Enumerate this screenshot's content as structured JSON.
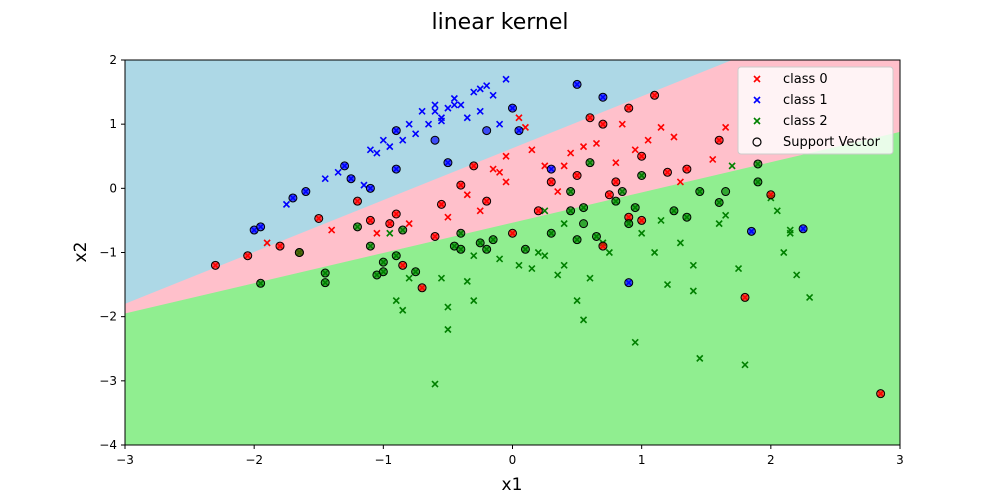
{
  "chart_data": {
    "type": "scatter",
    "title": "linear kernel",
    "xlabel": "x1",
    "ylabel": "x2",
    "xlim": [
      -3,
      3
    ],
    "ylim": [
      -4,
      2
    ],
    "xticks": [
      -3,
      -2,
      -1,
      0,
      1,
      2,
      3
    ],
    "yticks": [
      -4,
      -3,
      -2,
      -1,
      0,
      1,
      2
    ],
    "grid": false,
    "legend_placement": "top-right",
    "background_regions": [
      {
        "name": "class 1 region",
        "color": "#add8e6",
        "boundary": [
          [
            -3,
            -1.8
          ],
          [
            1.7,
            2
          ],
          [
            3,
            2
          ]
        ]
      },
      {
        "name": "class 0 region",
        "color": "#ffc0cb",
        "boundary": [
          [
            -3,
            -1.95
          ],
          [
            3,
            0.88
          ]
        ]
      },
      {
        "name": "class 2 region",
        "color": "#90ee90"
      }
    ],
    "series": [
      {
        "name": "class 0",
        "color": "#ff0000",
        "marker": "x",
        "points": [
          [
            -2.3,
            -1.2
          ],
          [
            -2.05,
            -1.05
          ],
          [
            -1.9,
            -0.85
          ],
          [
            -1.8,
            -0.9
          ],
          [
            -1.65,
            -1.0
          ],
          [
            -1.5,
            -0.47
          ],
          [
            -1.4,
            -0.65
          ],
          [
            -1.2,
            -0.2
          ],
          [
            -1.1,
            -0.5
          ],
          [
            -1.05,
            -0.7
          ],
          [
            -0.95,
            -0.55
          ],
          [
            -0.9,
            -0.4
          ],
          [
            -0.85,
            -1.2
          ],
          [
            -0.8,
            -0.55
          ],
          [
            -0.7,
            -1.55
          ],
          [
            -0.6,
            -0.75
          ],
          [
            -0.55,
            -0.25
          ],
          [
            -0.5,
            -0.45
          ],
          [
            -0.4,
            0.05
          ],
          [
            -0.35,
            -0.1
          ],
          [
            -0.3,
            0.35
          ],
          [
            -0.25,
            -0.35
          ],
          [
            -0.2,
            -0.2
          ],
          [
            -0.15,
            0.3
          ],
          [
            -0.1,
            0.25
          ],
          [
            -0.05,
            0.1
          ],
          [
            0.0,
            -0.7
          ],
          [
            0.05,
            1.1
          ],
          [
            0.1,
            0.95
          ],
          [
            0.2,
            -0.35
          ],
          [
            0.25,
            0.35
          ],
          [
            0.3,
            0.1
          ],
          [
            0.4,
            0.35
          ],
          [
            0.45,
            0.55
          ],
          [
            0.5,
            0.2
          ],
          [
            0.55,
            0.65
          ],
          [
            0.6,
            1.1
          ],
          [
            0.65,
            0.7
          ],
          [
            0.7,
            1.0
          ],
          [
            0.75,
            -0.1
          ],
          [
            0.8,
            0.4
          ],
          [
            0.85,
            1.0
          ],
          [
            0.9,
            1.25
          ],
          [
            0.95,
            0.6
          ],
          [
            1.0,
            0.5
          ],
          [
            1.05,
            0.75
          ],
          [
            1.1,
            1.45
          ],
          [
            1.15,
            0.95
          ],
          [
            1.2,
            0.25
          ],
          [
            1.25,
            0.8
          ],
          [
            1.3,
            0.1
          ],
          [
            1.35,
            0.3
          ],
          [
            1.6,
            0.75
          ],
          [
            1.65,
            0.95
          ],
          [
            1.8,
            -1.7
          ],
          [
            2.0,
            -0.1
          ],
          [
            2.85,
            -3.2
          ],
          [
            0.9,
            -0.45
          ],
          [
            0.7,
            -0.9
          ],
          [
            0.15,
            0.6
          ],
          [
            -0.05,
            0.5
          ],
          [
            0.35,
            -0.05
          ],
          [
            1.0,
            -0.5
          ],
          [
            0.8,
            0.1
          ],
          [
            1.55,
            0.45
          ]
        ],
        "support_vectors": [
          [
            -2.3,
            -1.2
          ],
          [
            -2.05,
            -1.05
          ],
          [
            -1.8,
            -0.9
          ],
          [
            -1.65,
            -1.0
          ],
          [
            -1.5,
            -0.47
          ],
          [
            -1.2,
            -0.2
          ],
          [
            -1.1,
            -0.5
          ],
          [
            -0.95,
            -0.55
          ],
          [
            -0.9,
            -0.4
          ],
          [
            -0.85,
            -1.2
          ],
          [
            -0.7,
            -1.55
          ],
          [
            -0.6,
            -0.75
          ],
          [
            -0.55,
            -0.25
          ],
          [
            -0.4,
            0.05
          ],
          [
            -0.3,
            0.35
          ],
          [
            -0.2,
            -0.2
          ],
          [
            0.0,
            -0.7
          ],
          [
            0.2,
            -0.35
          ],
          [
            0.3,
            0.1
          ],
          [
            0.5,
            0.2
          ],
          [
            0.6,
            1.1
          ],
          [
            0.7,
            1.0
          ],
          [
            0.75,
            -0.1
          ],
          [
            0.9,
            1.25
          ],
          [
            1.0,
            0.5
          ],
          [
            1.1,
            1.45
          ],
          [
            1.2,
            0.25
          ],
          [
            1.35,
            0.3
          ],
          [
            1.6,
            0.75
          ],
          [
            1.8,
            -1.7
          ],
          [
            2.0,
            -0.1
          ],
          [
            2.85,
            -3.2
          ],
          [
            0.9,
            -0.45
          ],
          [
            0.7,
            -0.9
          ],
          [
            1.0,
            -0.5
          ],
          [
            0.8,
            0.1
          ]
        ]
      },
      {
        "name": "class 1",
        "color": "#0000ff",
        "marker": "x",
        "points": [
          [
            -2.0,
            -0.65
          ],
          [
            -1.95,
            -0.6
          ],
          [
            -1.75,
            -0.25
          ],
          [
            -1.7,
            -0.15
          ],
          [
            -1.6,
            -0.05
          ],
          [
            -1.45,
            0.15
          ],
          [
            -1.35,
            0.25
          ],
          [
            -1.3,
            0.35
          ],
          [
            -1.25,
            0.15
          ],
          [
            -1.15,
            0.05
          ],
          [
            -1.1,
            0.6
          ],
          [
            -1.05,
            0.55
          ],
          [
            -1.0,
            0.75
          ],
          [
            -0.95,
            0.65
          ],
          [
            -0.9,
            0.9
          ],
          [
            -0.85,
            0.75
          ],
          [
            -0.8,
            1.0
          ],
          [
            -0.75,
            0.85
          ],
          [
            -0.7,
            1.2
          ],
          [
            -0.65,
            1.0
          ],
          [
            -0.6,
            1.3
          ],
          [
            -0.55,
            1.1
          ],
          [
            -0.5,
            1.25
          ],
          [
            -0.45,
            1.4
          ],
          [
            -0.4,
            1.3
          ],
          [
            -0.35,
            1.1
          ],
          [
            -0.3,
            1.5
          ],
          [
            -0.25,
            1.2
          ],
          [
            -0.2,
            1.6
          ],
          [
            -0.15,
            1.45
          ],
          [
            -0.1,
            1.0
          ],
          [
            -0.05,
            1.7
          ],
          [
            0.0,
            1.25
          ],
          [
            0.05,
            0.9
          ],
          [
            0.5,
            1.62
          ],
          [
            0.7,
            1.42
          ],
          [
            0.9,
            -1.47
          ],
          [
            1.85,
            -0.67
          ],
          [
            2.25,
            -0.63
          ],
          [
            -0.9,
            0.3
          ],
          [
            -1.1,
            0.0
          ],
          [
            -0.5,
            0.4
          ],
          [
            0.3,
            0.3
          ],
          [
            -0.6,
            1.2
          ],
          [
            -0.45,
            1.3
          ],
          [
            -0.55,
            1.05
          ],
          [
            -0.25,
            1.55
          ]
        ],
        "support_vectors": [
          [
            -2.0,
            -0.65
          ],
          [
            -1.95,
            -0.6
          ],
          [
            -1.7,
            -0.15
          ],
          [
            -1.6,
            -0.05
          ],
          [
            -1.3,
            0.35
          ],
          [
            -1.25,
            0.15
          ],
          [
            -1.1,
            0.0
          ],
          [
            -0.9,
            0.3
          ],
          [
            -0.9,
            0.9
          ],
          [
            -0.6,
            0.75
          ],
          [
            -0.5,
            0.4
          ],
          [
            -0.2,
            0.9
          ],
          [
            0.0,
            1.25
          ],
          [
            0.05,
            0.9
          ],
          [
            0.5,
            1.62
          ],
          [
            0.7,
            1.42
          ],
          [
            0.9,
            -1.47
          ],
          [
            1.85,
            -0.67
          ],
          [
            2.25,
            -0.63
          ],
          [
            0.3,
            0.3
          ]
        ]
      },
      {
        "name": "class 2",
        "color": "#008000",
        "marker": "x",
        "points": [
          [
            -1.95,
            -1.48
          ],
          [
            -1.65,
            -1.0
          ],
          [
            -1.45,
            -1.32
          ],
          [
            -1.45,
            -1.47
          ],
          [
            -1.2,
            -0.6
          ],
          [
            -1.1,
            -0.9
          ],
          [
            -1.05,
            -1.35
          ],
          [
            -1.0,
            -1.3
          ],
          [
            -0.95,
            -0.7
          ],
          [
            -0.9,
            -1.05
          ],
          [
            -0.85,
            -0.65
          ],
          [
            -0.8,
            -1.4
          ],
          [
            -0.75,
            -1.3
          ],
          [
            -0.9,
            -1.75
          ],
          [
            -0.85,
            -1.9
          ],
          [
            -0.6,
            -3.05
          ],
          [
            -0.55,
            -1.4
          ],
          [
            -0.5,
            -2.2
          ],
          [
            -0.5,
            -1.85
          ],
          [
            -0.45,
            -0.9
          ],
          [
            -0.4,
            -0.7
          ],
          [
            -0.35,
            -1.45
          ],
          [
            -0.3,
            -1.75
          ],
          [
            -0.25,
            -0.85
          ],
          [
            -0.2,
            -0.95
          ],
          [
            -0.15,
            -0.8
          ],
          [
            -0.1,
            -1.1
          ],
          [
            0.05,
            -1.2
          ],
          [
            0.1,
            -0.95
          ],
          [
            0.15,
            -1.25
          ],
          [
            0.2,
            -1.0
          ],
          [
            0.25,
            -1.05
          ],
          [
            0.3,
            -0.7
          ],
          [
            0.35,
            -1.35
          ],
          [
            0.4,
            -1.2
          ],
          [
            0.45,
            -0.35
          ],
          [
            0.5,
            -0.8
          ],
          [
            0.5,
            -1.75
          ],
          [
            0.55,
            -2.05
          ],
          [
            0.6,
            -1.4
          ],
          [
            0.65,
            -0.75
          ],
          [
            0.7,
            -0.85
          ],
          [
            0.75,
            -1.0
          ],
          [
            0.8,
            -0.2
          ],
          [
            0.85,
            -0.05
          ],
          [
            0.9,
            -0.55
          ],
          [
            0.95,
            -2.4
          ],
          [
            1.0,
            -0.7
          ],
          [
            1.1,
            -1.0
          ],
          [
            1.15,
            -0.5
          ],
          [
            1.2,
            -1.5
          ],
          [
            1.3,
            -0.85
          ],
          [
            1.35,
            -0.45
          ],
          [
            1.4,
            -1.2
          ],
          [
            1.45,
            -2.65
          ],
          [
            1.6,
            -0.55
          ],
          [
            1.65,
            -0.42
          ],
          [
            1.75,
            -1.25
          ],
          [
            1.8,
            -2.75
          ],
          [
            1.9,
            0.1
          ],
          [
            2.0,
            -0.15
          ],
          [
            2.05,
            -0.35
          ],
          [
            2.1,
            -1.0
          ],
          [
            2.15,
            -0.65
          ],
          [
            2.2,
            -1.35
          ],
          [
            2.3,
            -1.7
          ],
          [
            1.4,
            -1.6
          ],
          [
            0.25,
            -0.35
          ],
          [
            -0.3,
            -1.05
          ],
          [
            1.25,
            -0.35
          ],
          [
            0.4,
            -0.55
          ],
          [
            1.0,
            0.2
          ],
          [
            1.9,
            0.38
          ],
          [
            0.95,
            -0.3
          ],
          [
            1.6,
            -0.22
          ],
          [
            1.45,
            -0.05
          ],
          [
            -1.0,
            -1.15
          ],
          [
            -0.4,
            -0.95
          ],
          [
            0.55,
            -0.3
          ],
          [
            0.45,
            -0.05
          ],
          [
            2.15,
            -0.7
          ],
          [
            0.6,
            0.4
          ],
          [
            1.7,
            0.35
          ]
        ],
        "support_vectors": [
          [
            -1.95,
            -1.48
          ],
          [
            -1.65,
            -1.0
          ],
          [
            -1.45,
            -1.32
          ],
          [
            -1.45,
            -1.47
          ],
          [
            -1.2,
            -0.6
          ],
          [
            -1.1,
            -0.9
          ],
          [
            -1.05,
            -1.35
          ],
          [
            -1.0,
            -1.3
          ],
          [
            -0.9,
            -1.05
          ],
          [
            -0.85,
            -0.65
          ],
          [
            -0.75,
            -1.3
          ],
          [
            -0.45,
            -0.9
          ],
          [
            -0.4,
            -0.7
          ],
          [
            -0.25,
            -0.85
          ],
          [
            -0.2,
            -0.95
          ],
          [
            -0.15,
            -0.8
          ],
          [
            0.1,
            -0.95
          ],
          [
            0.3,
            -0.7
          ],
          [
            0.45,
            -0.35
          ],
          [
            0.5,
            -0.8
          ],
          [
            0.55,
            -0.55
          ],
          [
            0.65,
            -0.75
          ],
          [
            0.8,
            -0.2
          ],
          [
            0.85,
            -0.05
          ],
          [
            0.9,
            -0.55
          ],
          [
            1.25,
            -0.35
          ],
          [
            1.35,
            -0.45
          ],
          [
            1.0,
            0.2
          ],
          [
            1.9,
            0.38
          ],
          [
            0.95,
            -0.3
          ],
          [
            1.6,
            -0.22
          ],
          [
            1.45,
            -0.05
          ],
          [
            -1.0,
            -1.15
          ],
          [
            -0.4,
            -0.95
          ],
          [
            0.55,
            -0.3
          ],
          [
            0.45,
            -0.05
          ],
          [
            0.6,
            0.4
          ],
          [
            1.9,
            0.1
          ],
          [
            1.65,
            -0.05
          ]
        ]
      },
      {
        "name": "Support Vector",
        "marker": "o",
        "color": "#000000"
      }
    ]
  }
}
